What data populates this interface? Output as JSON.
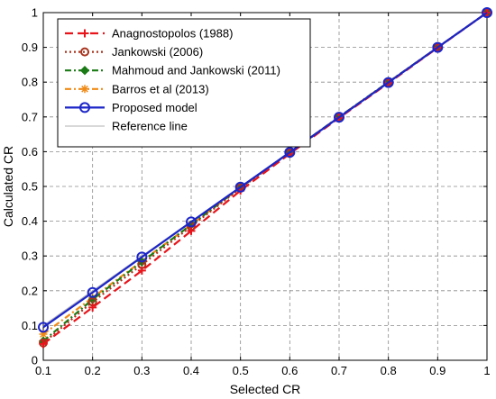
{
  "chart_data": {
    "type": "line",
    "xlabel": "Selected CR",
    "ylabel": "Calculated CR",
    "xlim": [
      0.1,
      1
    ],
    "ylim": [
      0,
      1
    ],
    "grid": true,
    "legend_position": "top-left",
    "x": [
      0.1,
      0.2,
      0.3,
      0.4,
      0.5,
      0.6,
      0.7,
      0.8,
      0.9,
      1.0
    ],
    "xticks": [
      "0.1",
      "0.2",
      "0.3",
      "0.4",
      "0.5",
      "0.6",
      "0.7",
      "0.8",
      "0.9",
      "1"
    ],
    "yticks": [
      "0",
      "0.1",
      "0.2",
      "0.3",
      "0.4",
      "0.5",
      "0.6",
      "0.7",
      "0.8",
      "0.9",
      "1"
    ],
    "series": [
      {
        "name": "Anagnostopolos (1988)",
        "color": "#e8141b",
        "dash": "9,5",
        "marker": "plus",
        "values": [
          0.047,
          0.152,
          0.258,
          0.372,
          0.488,
          0.594,
          0.697,
          0.797,
          0.899,
          1.0
        ]
      },
      {
        "name": "Jankowski (2006)",
        "color": "#a8341e",
        "dash": "2,3",
        "marker": "circle",
        "values": [
          0.05,
          0.168,
          0.275,
          0.385,
          0.495,
          0.597,
          0.699,
          0.799,
          0.9,
          1.0
        ]
      },
      {
        "name": "Mahmoud and Jankowski (2011)",
        "color": "#1a7a14",
        "dash": "7,3,2,3",
        "marker": "diamond",
        "values": [
          0.055,
          0.175,
          0.283,
          0.39,
          0.497,
          0.598,
          0.7,
          0.8,
          0.9,
          1.0
        ]
      },
      {
        "name": "Barros et al (2013)",
        "color": "#f08a16",
        "dash": "7,3,2,3",
        "marker": "star",
        "values": [
          0.075,
          0.18,
          0.285,
          0.39,
          0.497,
          0.598,
          0.7,
          0.8,
          0.9,
          1.0
        ]
      },
      {
        "name": "Proposed model",
        "color": "#1c25c8",
        "dash": "",
        "marker": "circle-open",
        "values": [
          0.095,
          0.195,
          0.297,
          0.398,
          0.498,
          0.598,
          0.699,
          0.799,
          0.9,
          1.0
        ]
      },
      {
        "name": "Reference line",
        "color": "#b0b0b0",
        "dash": "",
        "marker": "none",
        "values": [
          0.1,
          0.2,
          0.3,
          0.4,
          0.5,
          0.6,
          0.7,
          0.8,
          0.9,
          1.0
        ]
      }
    ]
  }
}
